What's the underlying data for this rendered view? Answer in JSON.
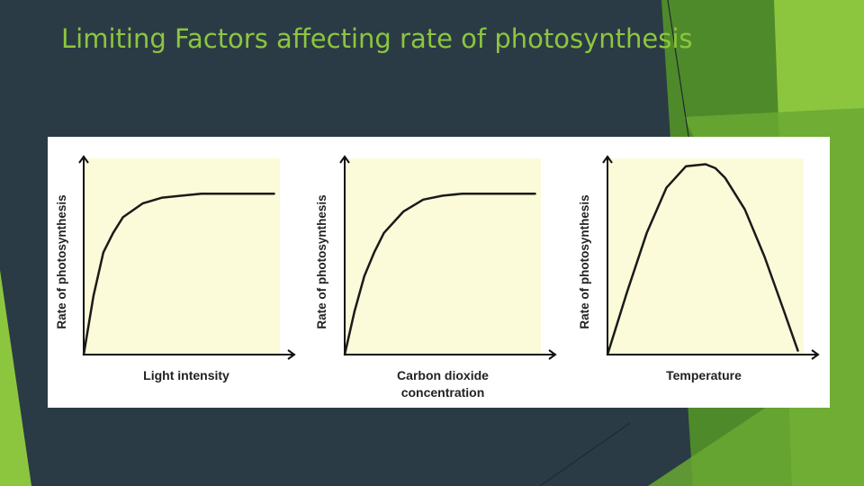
{
  "slide": {
    "title": "Limiting Factors affecting rate of photosynthesis"
  },
  "colors": {
    "background": "#2b3b45",
    "title": "#8cc63f",
    "accent_green_light": "#8cc63f",
    "accent_green_dark": "#4f8a2a",
    "plot_background": "#fbfbd9",
    "curve": "#1a1a1a"
  },
  "chart_data": [
    {
      "type": "line",
      "xlabel": "Light intensity",
      "ylabel": "Rate of photosynthesis",
      "x_ticks": false,
      "y_ticks": false,
      "xlim": [
        0,
        1
      ],
      "ylim": [
        0,
        1
      ],
      "series": [
        {
          "x": [
            0,
            0.05,
            0.1,
            0.15,
            0.2,
            0.3,
            0.4,
            0.5,
            0.6,
            0.7,
            0.8,
            0.9,
            0.97
          ],
          "y": [
            0,
            0.3,
            0.52,
            0.62,
            0.7,
            0.77,
            0.8,
            0.81,
            0.82,
            0.82,
            0.82,
            0.82,
            0.82
          ]
        }
      ]
    },
    {
      "type": "line",
      "xlabel": "Carbon dioxide concentration",
      "xlabel_lines": [
        "Carbon dioxide",
        "concentration"
      ],
      "ylabel": "Rate of photosynthesis",
      "x_ticks": false,
      "y_ticks": false,
      "xlim": [
        0,
        1
      ],
      "ylim": [
        0,
        1
      ],
      "series": [
        {
          "x": [
            0,
            0.05,
            0.1,
            0.15,
            0.2,
            0.3,
            0.4,
            0.5,
            0.6,
            0.7,
            0.8,
            0.9,
            0.97
          ],
          "y": [
            0,
            0.22,
            0.4,
            0.52,
            0.62,
            0.73,
            0.79,
            0.81,
            0.82,
            0.82,
            0.82,
            0.82,
            0.82
          ]
        }
      ]
    },
    {
      "type": "line",
      "xlabel": "Temperature",
      "ylabel": "Rate of photosynthesis",
      "x_ticks": false,
      "y_ticks": false,
      "xlim": [
        0,
        1
      ],
      "ylim": [
        0,
        1
      ],
      "series": [
        {
          "x": [
            0,
            0.1,
            0.2,
            0.3,
            0.4,
            0.5,
            0.55,
            0.6,
            0.7,
            0.8,
            0.9,
            0.97
          ],
          "y": [
            0,
            0.32,
            0.62,
            0.85,
            0.96,
            0.97,
            0.95,
            0.9,
            0.74,
            0.5,
            0.22,
            0.02
          ]
        }
      ]
    }
  ]
}
